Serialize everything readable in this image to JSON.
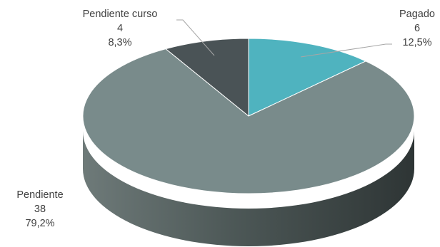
{
  "chart_data": {
    "type": "pie",
    "title": "",
    "style": "3d",
    "slices": [
      {
        "label": "Pagado",
        "value": 6,
        "percent": "12,5%",
        "color": "#4fb3bf"
      },
      {
        "label": "Pendiente",
        "value": 38,
        "percent": "79,2%",
        "color": "#798b8b"
      },
      {
        "label": "Pendiente curso",
        "value": 4,
        "percent": "8,3%",
        "color": "#4a5356"
      }
    ]
  }
}
